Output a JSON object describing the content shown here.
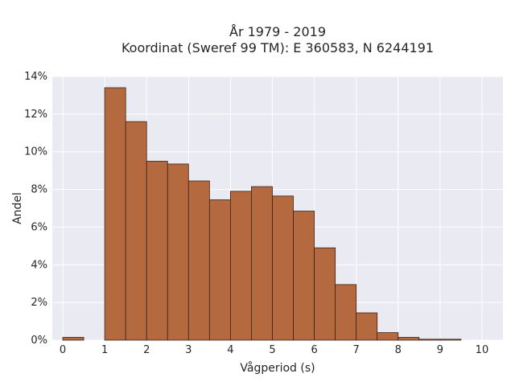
{
  "chart_data": {
    "type": "bar",
    "title_lines": [
      "År 1979 - 2019",
      "Koordinat (Sweref 99 TM): E 360583, N 6244191"
    ],
    "xlabel": "Vågperiod (s)",
    "ylabel": "Andel",
    "xlim": [
      -0.25,
      10.5
    ],
    "ylim": [
      0,
      14
    ],
    "x_ticks": [
      0,
      1,
      2,
      3,
      4,
      5,
      6,
      7,
      8,
      9,
      10
    ],
    "y_ticks": [
      0,
      2,
      4,
      6,
      8,
      10,
      12,
      14
    ],
    "y_tick_suffix": "%",
    "bin_width": 0.5,
    "bins": [
      {
        "x0": 0.0,
        "value": 0.15
      },
      {
        "x0": 0.5,
        "value": 0.0
      },
      {
        "x0": 1.0,
        "value": 13.4
      },
      {
        "x0": 1.5,
        "value": 11.6
      },
      {
        "x0": 2.0,
        "value": 9.5
      },
      {
        "x0": 2.5,
        "value": 9.35
      },
      {
        "x0": 3.0,
        "value": 8.45
      },
      {
        "x0": 3.5,
        "value": 7.45
      },
      {
        "x0": 4.0,
        "value": 7.9
      },
      {
        "x0": 4.5,
        "value": 8.15
      },
      {
        "x0": 5.0,
        "value": 7.65
      },
      {
        "x0": 5.5,
        "value": 6.85
      },
      {
        "x0": 6.0,
        "value": 4.9
      },
      {
        "x0": 6.5,
        "value": 2.95
      },
      {
        "x0": 7.0,
        "value": 1.45
      },
      {
        "x0": 7.5,
        "value": 0.4
      },
      {
        "x0": 8.0,
        "value": 0.15
      },
      {
        "x0": 8.5,
        "value": 0.05
      },
      {
        "x0": 9.0,
        "value": 0.05
      }
    ],
    "grid": true,
    "colors": {
      "bar_fill": "#b5693f",
      "bar_stroke": "#3a2418",
      "plot_background": "#eaeaf2",
      "grid": "#ffffff"
    }
  }
}
